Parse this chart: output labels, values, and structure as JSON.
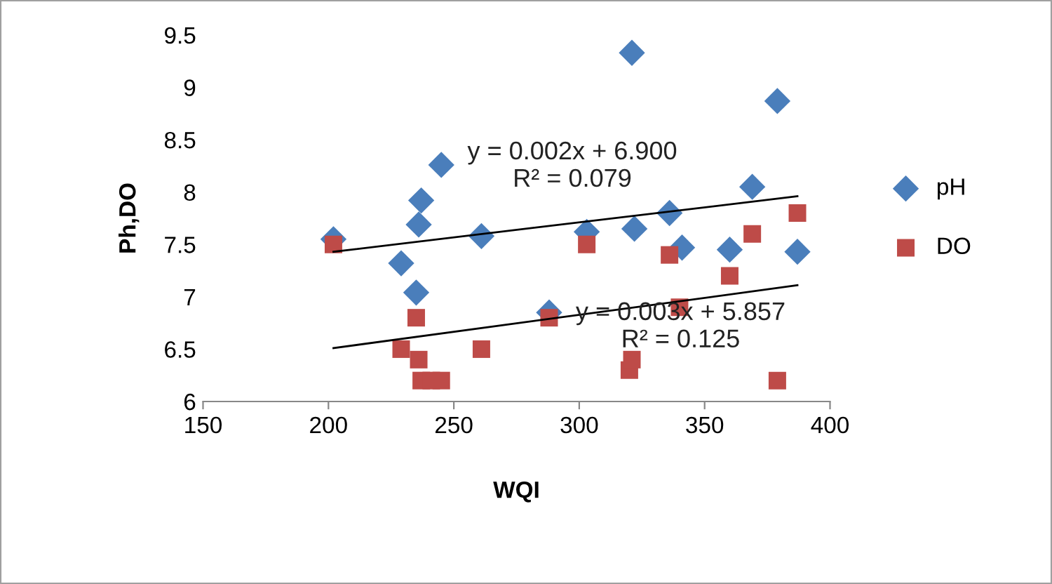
{
  "chart_data": {
    "type": "scatter",
    "xlabel": "WQI",
    "ylabel": "Ph,DO",
    "xlim": [
      150,
      400
    ],
    "xticks": [
      150,
      200,
      250,
      300,
      350,
      400
    ],
    "ylim": [
      6,
      9.5
    ],
    "yticks": [
      6,
      6.5,
      7,
      7.5,
      8,
      8.5,
      9,
      9.5
    ],
    "grid": false,
    "legend": "right",
    "series": [
      {
        "name": "pH",
        "color": "#4a7ebb",
        "marker": "diamond",
        "x": [
          202,
          229,
          235,
          236,
          237,
          245,
          261,
          288,
          303,
          321,
          322,
          336,
          341,
          360,
          369,
          379,
          387
        ],
        "values": [
          7.55,
          7.32,
          7.04,
          7.69,
          7.92,
          8.26,
          7.58,
          6.85,
          7.62,
          9.33,
          7.65,
          7.8,
          7.47,
          7.45,
          8.05,
          8.87,
          7.43
        ]
      },
      {
        "name": "DO",
        "color": "#be4b48",
        "marker": "square",
        "x": [
          202,
          229,
          235,
          236,
          237,
          241,
          245,
          261,
          288,
          303,
          320,
          321,
          336,
          340,
          360,
          369,
          379,
          387
        ],
        "values": [
          7.5,
          6.5,
          6.8,
          6.4,
          6.2,
          6.2,
          6.2,
          6.5,
          6.8,
          7.5,
          6.3,
          6.4,
          7.4,
          6.9,
          7.2,
          7.6,
          6.2,
          7.8
        ]
      },
      {
        "type": "line",
        "color": "#000000",
        "marker": "none",
        "x": [
          202,
          387
        ],
        "values": [
          7.43,
          7.96
        ]
      },
      {
        "type": "line",
        "color": "#000000",
        "marker": "none",
        "x": [
          202,
          387
        ],
        "values": [
          6.51,
          7.11
        ]
      }
    ],
    "annotations": [
      "y = 0.002x + 6.900\nR² = 0.079",
      "y = 0.003x + 5.857\nR² = 0.125"
    ]
  }
}
